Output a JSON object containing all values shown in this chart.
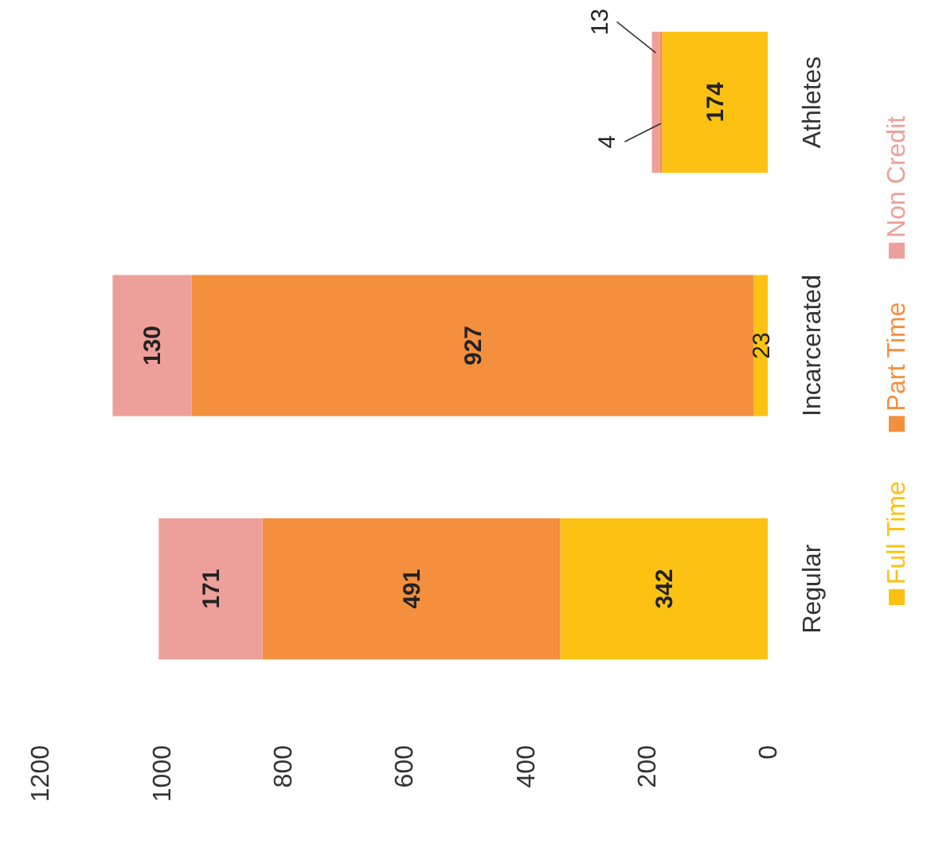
{
  "chart_data": {
    "type": "bar",
    "stacked": true,
    "orientation": "horizontal",
    "categories": [
      "Athletes",
      "Incarcerated",
      "Regular"
    ],
    "series": [
      {
        "name": "Full Time",
        "color": "#fcc213",
        "values": [
          174,
          23,
          342
        ]
      },
      {
        "name": "Part Time",
        "color": "#f48f3e",
        "values": [
          4,
          927,
          491
        ]
      },
      {
        "name": "Non Credit",
        "color": "#eda09a",
        "values": [
          13,
          130,
          171
        ]
      }
    ],
    "xlim": [
      1200,
      0
    ],
    "xticks": [
      0,
      200,
      400,
      600,
      800,
      1000,
      1200
    ],
    "grid": false,
    "legend": "right",
    "data_labels": true
  }
}
